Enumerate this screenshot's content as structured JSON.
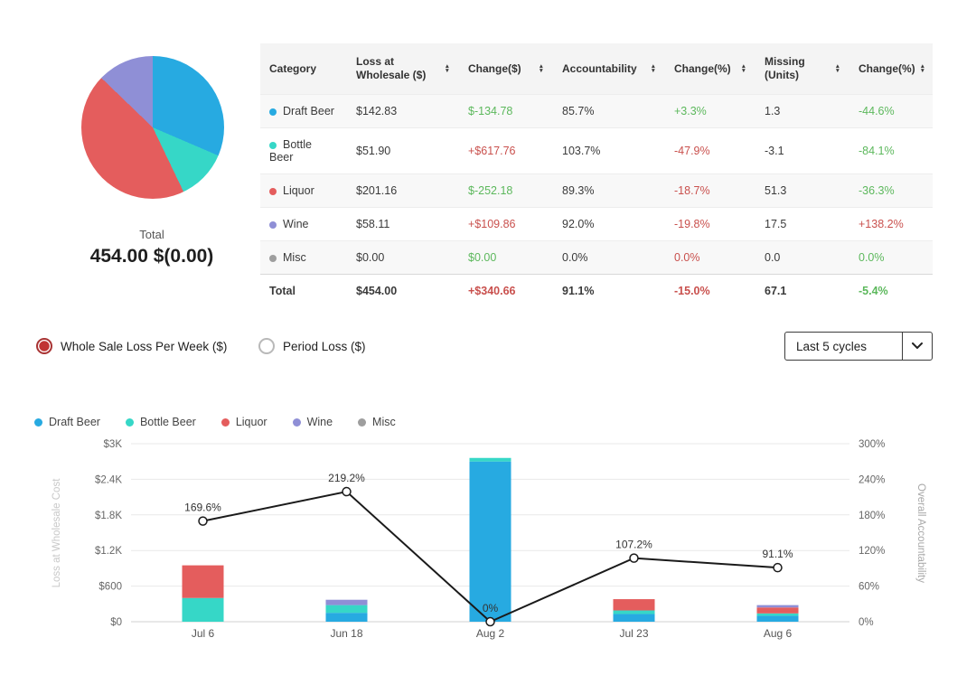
{
  "table": {
    "columns": [
      {
        "label": "Category",
        "sortable": false
      },
      {
        "label": "Loss at Wholesale ($)",
        "sortable": true
      },
      {
        "label": "Change($)",
        "sortable": true
      },
      {
        "label": "Accountability",
        "sortable": true
      },
      {
        "label": "Change(%)",
        "sortable": true
      },
      {
        "label": "Missing (Units)",
        "sortable": true
      },
      {
        "label": "Change(%)",
        "sortable": true
      }
    ],
    "rows": [
      {
        "dot_color": "#27aae1",
        "cells": [
          "Draft Beer",
          "$142.83",
          "$-134.78",
          "85.7%",
          "+3.3%",
          "1.3",
          "-44.6%"
        ],
        "cell_colors": [
          "",
          "",
          "green",
          "",
          "green",
          "",
          "green"
        ]
      },
      {
        "dot_color": "#36d7c7",
        "cells": [
          "Bottle Beer",
          "$51.90",
          "+$617.76",
          "103.7%",
          "-47.9%",
          "-3.1",
          "-84.1%"
        ],
        "cell_colors": [
          "",
          "",
          "red",
          "",
          "red",
          "",
          "green"
        ]
      },
      {
        "dot_color": "#e45d5d",
        "cells": [
          "Liquor",
          "$201.16",
          "$-252.18",
          "89.3%",
          "-18.7%",
          "51.3",
          "-36.3%"
        ],
        "cell_colors": [
          "",
          "",
          "green",
          "",
          "red",
          "",
          "green"
        ]
      },
      {
        "dot_color": "#8f8fd6",
        "cells": [
          "Wine",
          "$58.11",
          "+$109.86",
          "92.0%",
          "-19.8%",
          "17.5",
          "+138.2%"
        ],
        "cell_colors": [
          "",
          "",
          "red",
          "",
          "red",
          "",
          "red"
        ]
      },
      {
        "dot_color": "#9e9e9e",
        "cells": [
          "Misc",
          "$0.00",
          "$0.00",
          "0.0%",
          "0.0%",
          "0.0",
          "0.0%"
        ],
        "cell_colors": [
          "",
          "",
          "green",
          "",
          "red",
          "",
          "green"
        ]
      }
    ],
    "total_row": {
      "cells": [
        "Total",
        "$454.00",
        "+$340.66",
        "91.1%",
        "-15.0%",
        "67.1",
        "-5.4%"
      ],
      "cell_colors": [
        "",
        "",
        "red",
        "",
        "red",
        "",
        "green"
      ]
    }
  },
  "controls": {
    "radios": [
      {
        "label": "Whole Sale Loss Per Week ($)",
        "selected": true
      },
      {
        "label": "Period Loss ($)",
        "selected": false
      }
    ],
    "dropdown_value": "Last 5 cycles"
  },
  "status_colors": {
    "green": "#5cb85c",
    "red": "#c9504d"
  },
  "chart_data": [
    {
      "type": "pie",
      "categories": [
        "Draft Beer",
        "Bottle Beer",
        "Liquor",
        "Wine",
        "Misc"
      ],
      "values": [
        142.83,
        51.9,
        201.16,
        58.11,
        0
      ],
      "colors": [
        "#27aae1",
        "#36d7c7",
        "#e45d5d",
        "#8f8fd6",
        "#9e9e9e"
      ],
      "center_label": "Total",
      "center_value": "454.00 $(0.00)"
    },
    {
      "type": "bar+line",
      "categories": [
        "Jul 6",
        "Jun 18",
        "Aug 2",
        "Jul 23",
        "Aug 6"
      ],
      "series": [
        {
          "name": "Draft Beer",
          "color": "#27aae1",
          "values": [
            0,
            150,
            2700,
            130,
            100
          ]
        },
        {
          "name": "Bottle Beer",
          "color": "#36d7c7",
          "values": [
            400,
            130,
            60,
            60,
            40
          ]
        },
        {
          "name": "Liquor",
          "color": "#e45d5d",
          "values": [
            550,
            0,
            0,
            190,
            100
          ]
        },
        {
          "name": "Wine",
          "color": "#8f8fd6",
          "values": [
            0,
            90,
            0,
            0,
            40
          ]
        },
        {
          "name": "Misc",
          "color": "#9e9e9e",
          "values": [
            0,
            0,
            0,
            0,
            0
          ]
        }
      ],
      "line_series": {
        "name": "Overall Accountability",
        "color": "#1a1a1a",
        "values": [
          169.6,
          219.2,
          0,
          107.2,
          91.1
        ],
        "labels": [
          "169.6%",
          "219.2%",
          "0%",
          "107.2%",
          "91.1%"
        ]
      },
      "left_axis": {
        "title": "Loss at Wholesale Cost",
        "max": 3000,
        "ticks": [
          "$0",
          "$600",
          "$1.2K",
          "$1.8K",
          "$2.4K",
          "$3K"
        ]
      },
      "right_axis": {
        "title": "Overall Accountability",
        "max": 300,
        "ticks": [
          "0%",
          "60%",
          "120%",
          "180%",
          "240%",
          "300%"
        ]
      },
      "grid": true,
      "legend_position": "top-left"
    }
  ]
}
